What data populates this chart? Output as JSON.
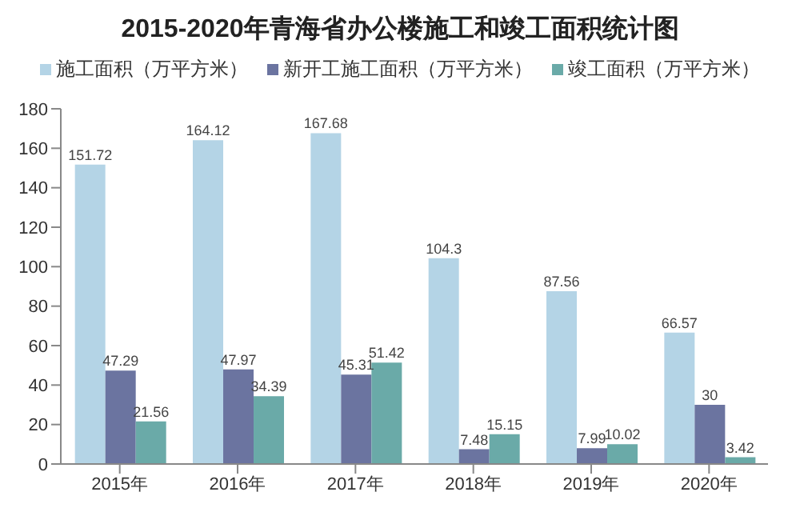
{
  "chart_data": {
    "type": "bar",
    "title": "2015-2020年青海省办公楼施工和竣工面积统计图",
    "categories": [
      "2015年",
      "2016年",
      "2017年",
      "2018年",
      "2019年",
      "2020年"
    ],
    "series": [
      {
        "name": "施工面积（万平方米）",
        "color": "#b4d4e6",
        "values": [
          151.72,
          164.12,
          167.68,
          104.3,
          87.56,
          66.57
        ]
      },
      {
        "name": "新开工施工面积（万平方米）",
        "color": "#6b74a0",
        "values": [
          47.29,
          47.97,
          45.31,
          7.48,
          7.99,
          30
        ]
      },
      {
        "name": "竣工面积（万平方米）",
        "color": "#6aaaa8",
        "values": [
          21.56,
          34.39,
          51.42,
          15.15,
          10.02,
          3.42
        ]
      }
    ],
    "ylim": [
      0,
      180
    ],
    "yticks": [
      0,
      20,
      40,
      60,
      80,
      100,
      120,
      140,
      160,
      180
    ],
    "grid": false,
    "legend": "top",
    "data_labels": true
  }
}
